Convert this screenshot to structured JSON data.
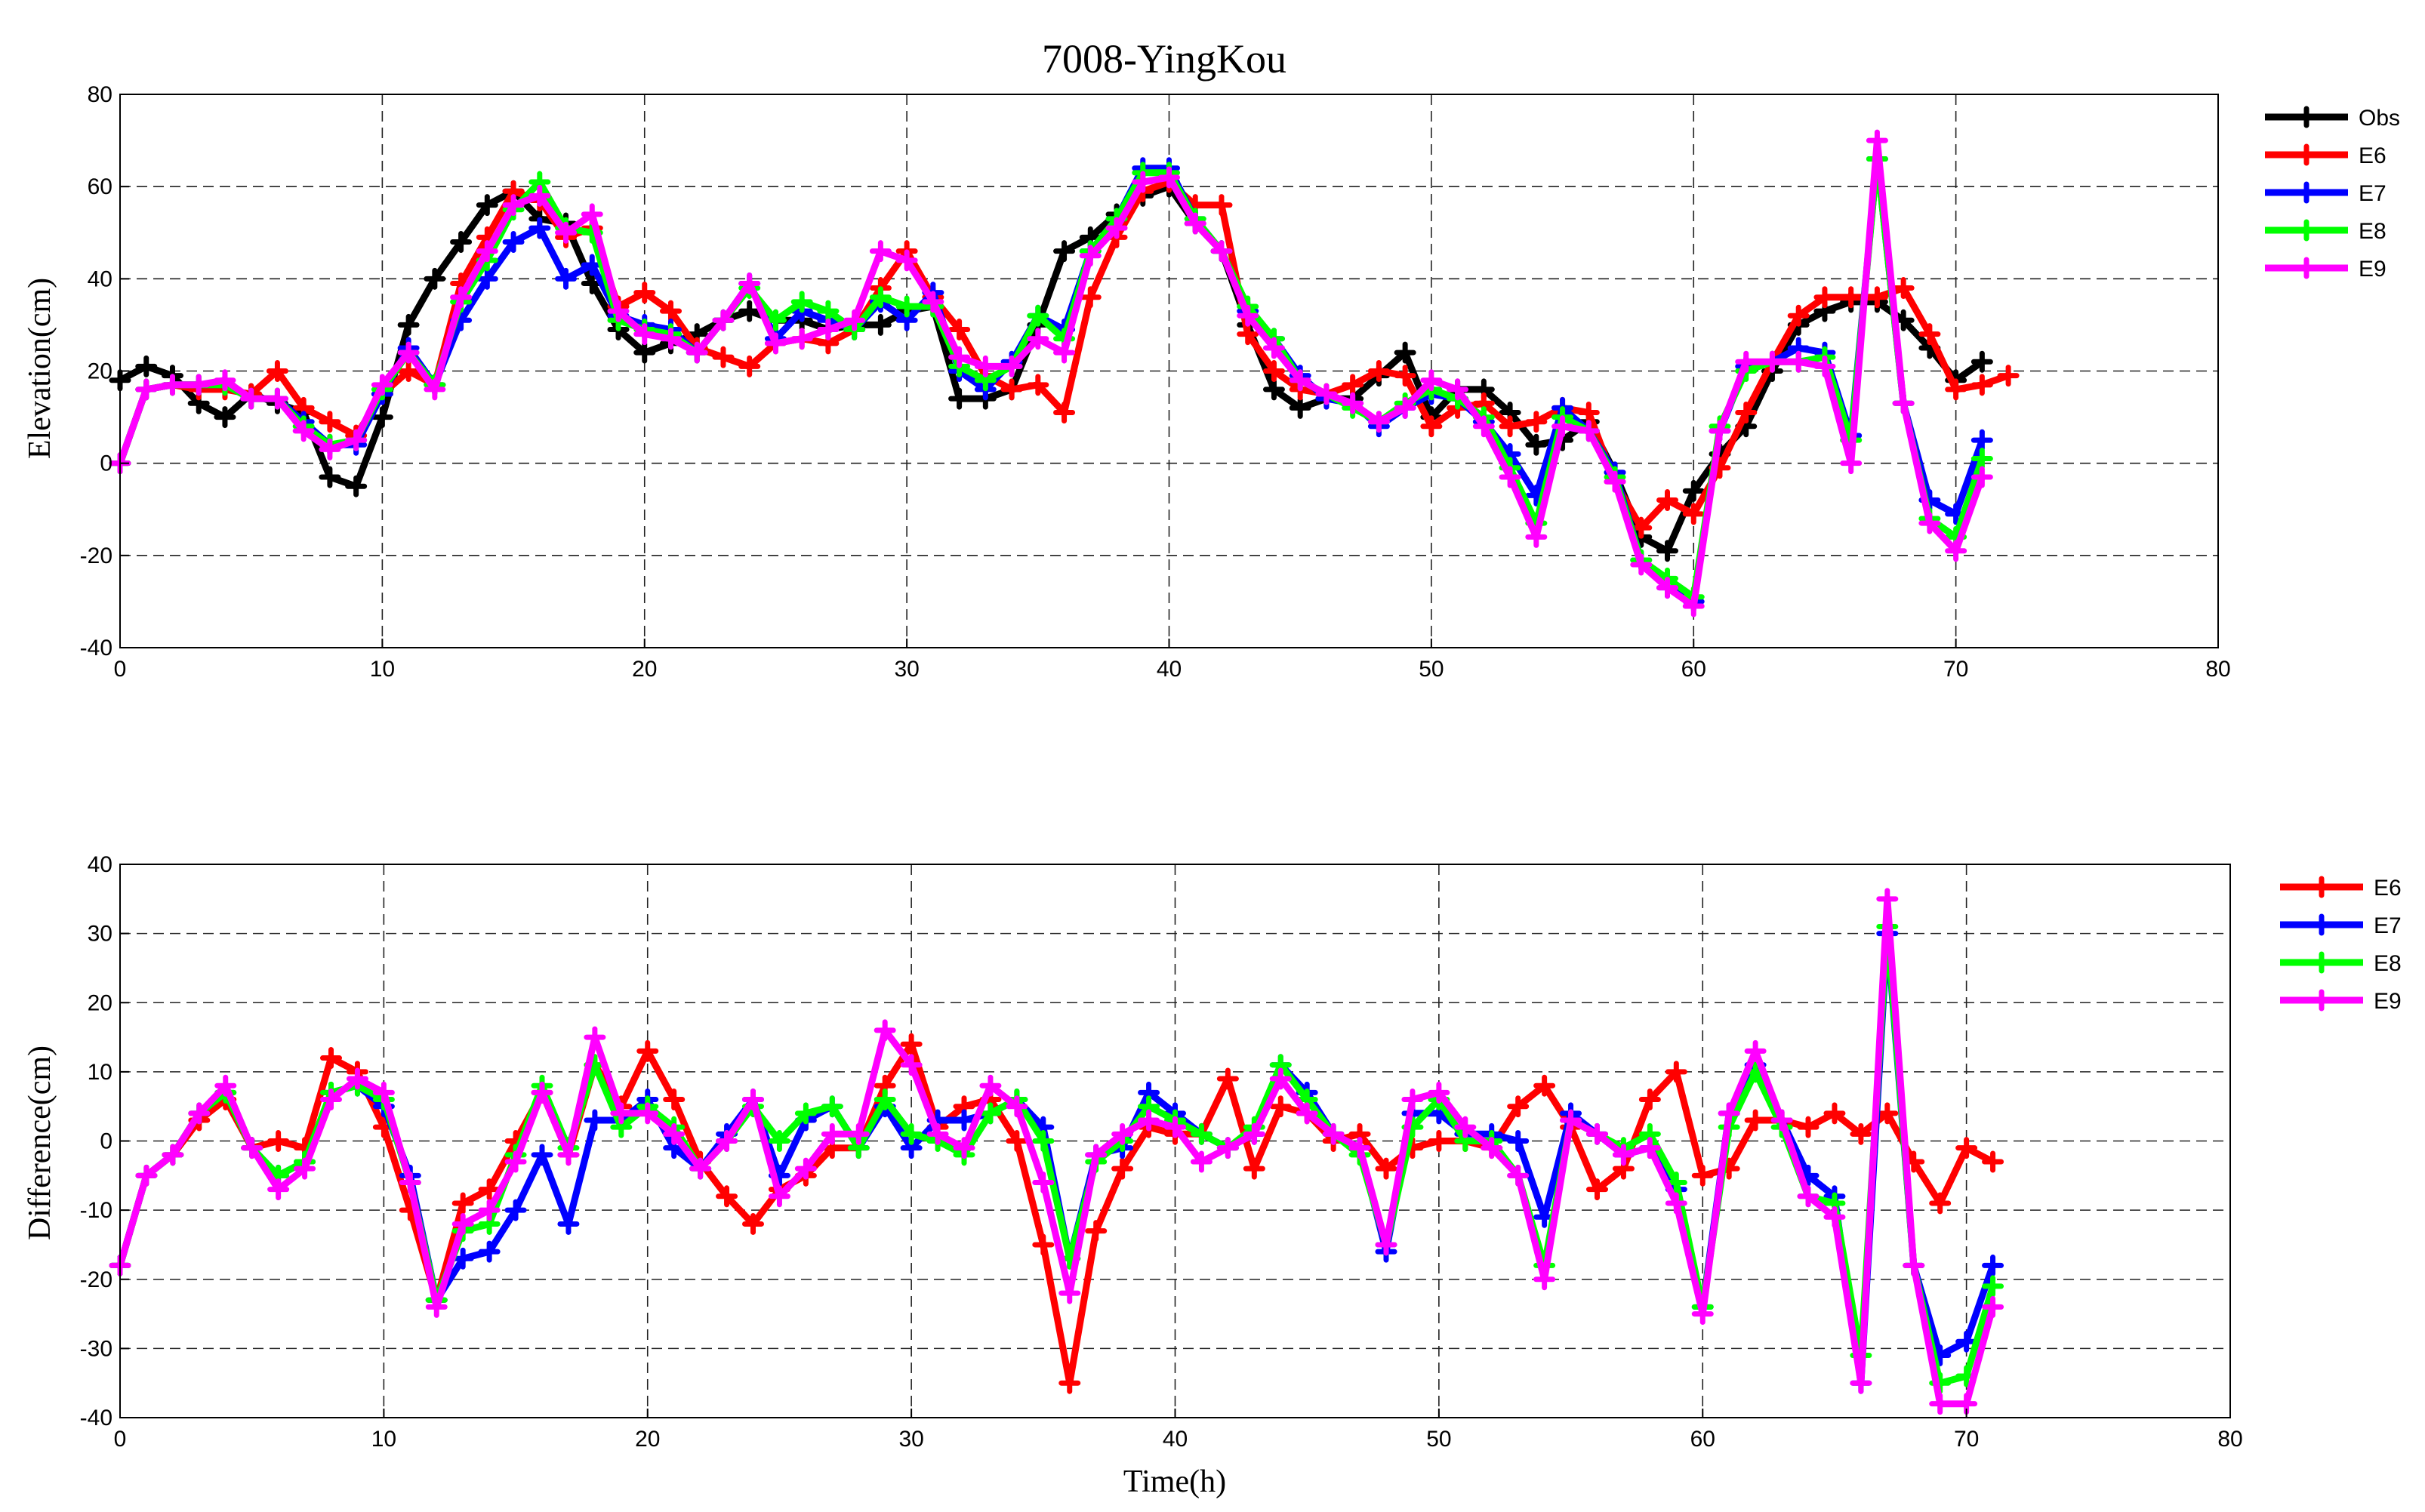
{
  "colors": {
    "Obs": "#000000",
    "E6": "#ff0000",
    "E7": "#0000ff",
    "E8": "#00ff00",
    "E9": "#ff00ff"
  },
  "chart_data": [
    {
      "type": "line",
      "title": "7008-YingKou",
      "xlabel": "",
      "ylabel": "Elevation(cm)",
      "xlim": [
        0,
        80
      ],
      "ylim": [
        -40,
        80
      ],
      "xticks": [
        0,
        10,
        20,
        30,
        40,
        50,
        60,
        70,
        80
      ],
      "yticks": [
        -40,
        -20,
        0,
        20,
        40,
        60,
        80
      ],
      "grid": true,
      "legend_position": "outside-right-top",
      "series": [
        {
          "name": "Obs",
          "color": "#000000",
          "values": [
            18,
            21,
            19,
            13,
            10,
            15,
            13,
            11,
            -3,
            -5,
            10,
            30,
            40,
            48,
            56,
            59,
            53,
            52,
            39,
            29,
            24,
            26,
            28,
            31,
            33,
            31,
            31,
            29,
            30,
            30,
            33,
            34,
            14,
            14,
            16,
            30,
            46,
            49,
            54,
            58,
            60,
            52,
            46,
            30,
            16,
            12,
            14,
            14,
            19,
            24,
            10,
            16,
            16,
            11,
            4,
            5,
            9,
            -2,
            -16,
            -19,
            -6,
            2,
            8,
            20,
            30,
            33,
            35,
            35,
            31,
            25,
            18,
            22
          ]
        },
        {
          "name": "E6",
          "color": "#ff0000",
          "values": [
            0,
            16,
            17,
            16,
            16,
            15,
            20,
            12,
            9,
            6,
            15,
            20,
            17,
            39,
            49,
            59,
            57,
            49,
            51,
            34,
            37,
            33,
            25,
            23,
            21,
            26,
            27,
            26,
            29,
            38,
            46,
            36,
            29,
            19,
            16,
            17,
            11,
            36,
            49,
            59,
            61,
            56,
            56,
            28,
            20,
            16,
            15,
            17,
            20,
            19,
            8,
            12,
            13,
            8,
            9,
            12,
            11,
            -4,
            -14,
            -8,
            -11,
            -1,
            11,
            22,
            32,
            36,
            36,
            36,
            38,
            28,
            16,
            17,
            19
          ]
        },
        {
          "name": "E7",
          "color": "#0000ff",
          "values": [
            0,
            16,
            17,
            17,
            17,
            14,
            14,
            9,
            4,
            4,
            15,
            25,
            17,
            31,
            40,
            48,
            51,
            40,
            43,
            32,
            30,
            29,
            24,
            31,
            39,
            27,
            33,
            31,
            29,
            35,
            31,
            37,
            20,
            16,
            22,
            32,
            29,
            46,
            53,
            64,
            64,
            53,
            46,
            33,
            27,
            19,
            14,
            13,
            8,
            12,
            15,
            14,
            9,
            2,
            -7,
            12,
            7,
            -2,
            -21,
            -27,
            -30,
            7,
            21,
            22,
            25,
            24,
            6,
            66,
            13,
            -8,
            -11,
            5
          ]
        },
        {
          "name": "E8",
          "color": "#00ff00",
          "values": [
            0,
            16,
            17,
            17,
            17,
            14,
            14,
            8,
            4,
            5,
            16,
            24,
            17,
            35,
            44,
            55,
            61,
            51,
            50,
            31,
            29,
            28,
            24,
            31,
            38,
            31,
            35,
            33,
            29,
            36,
            34,
            34,
            21,
            18,
            21,
            32,
            27,
            46,
            53,
            63,
            63,
            53,
            46,
            34,
            27,
            18,
            15,
            12,
            9,
            13,
            16,
            14,
            10,
            -1,
            -13,
            10,
            7,
            -3,
            -21,
            -25,
            -29,
            8,
            20,
            22,
            22,
            23,
            5,
            66,
            13,
            -12,
            -16,
            1
          ]
        },
        {
          "name": "E9",
          "color": "#ff00ff",
          "values": [
            0,
            16,
            17,
            17,
            18,
            14,
            14,
            7,
            3,
            5,
            17,
            24,
            16,
            36,
            46,
            56,
            58,
            50,
            54,
            33,
            28,
            27,
            24,
            31,
            39,
            26,
            27,
            29,
            31,
            46,
            44,
            35,
            23,
            21,
            21,
            27,
            24,
            45,
            51,
            61,
            62,
            52,
            46,
            32,
            25,
            18,
            15,
            13,
            9,
            12,
            18,
            16,
            8,
            -3,
            -16,
            8,
            7,
            -4,
            -22,
            -27,
            -31,
            7,
            22,
            22,
            22,
            21,
            0,
            70,
            13,
            -13,
            -19,
            -3
          ]
        }
      ]
    },
    {
      "type": "line",
      "title": "",
      "xlabel": "Time(h)",
      "ylabel": "Difference(cm)",
      "xlim": [
        0,
        80
      ],
      "ylim": [
        -40,
        40
      ],
      "xticks": [
        0,
        10,
        20,
        30,
        40,
        50,
        60,
        70,
        80
      ],
      "yticks": [
        -40,
        -30,
        -20,
        -10,
        0,
        10,
        20,
        30,
        40
      ],
      "grid": true,
      "legend_position": "outside-right-top",
      "series": [
        {
          "name": "E6",
          "color": "#ff0000",
          "values": [
            -18,
            -5,
            -2,
            3,
            6,
            -1,
            0,
            -1,
            12,
            10,
            2,
            -10,
            -23,
            -9,
            -7,
            0,
            7,
            -2,
            11,
            5,
            13,
            6,
            -3,
            -8,
            -12,
            -7,
            -5,
            -1,
            -1,
            8,
            14,
            2,
            5,
            6,
            0,
            -15,
            -35,
            -13,
            -4,
            2,
            1,
            1,
            9,
            -4,
            5,
            4,
            0,
            1,
            -4,
            -1,
            0,
            0,
            -1,
            5,
            8,
            2,
            -7,
            -4,
            6,
            10,
            -5,
            -4,
            3,
            3,
            2,
            4,
            1,
            4,
            -3,
            -9,
            -1,
            -3
          ]
        },
        {
          "name": "E7",
          "color": "#0000ff",
          "values": [
            -18,
            -5,
            -2,
            4,
            7,
            -1,
            -5,
            -3,
            7,
            8,
            5,
            -5,
            -23,
            -17,
            -16,
            -10,
            -2,
            -12,
            3,
            3,
            6,
            -1,
            -4,
            1,
            6,
            -5,
            3,
            5,
            -1,
            5,
            -1,
            3,
            3,
            4,
            6,
            2,
            -17,
            -2,
            -1,
            7,
            4,
            1,
            -1,
            1,
            11,
            7,
            1,
            -1,
            -16,
            4,
            4,
            1,
            1,
            0,
            -11,
            4,
            1,
            -2,
            -1,
            -7,
            -24,
            4,
            11,
            3,
            -5,
            -8,
            -35,
            30,
            -18,
            -31,
            -29,
            -18
          ]
        },
        {
          "name": "E8",
          "color": "#00ff00",
          "values": [
            -18,
            -5,
            -2,
            4,
            7,
            -1,
            -5,
            -3,
            7,
            8,
            6,
            -6,
            -23,
            -13,
            -12,
            -2,
            8,
            -1,
            11,
            2,
            5,
            2,
            -4,
            0,
            5,
            0,
            4,
            5,
            -1,
            6,
            1,
            0,
            -2,
            4,
            6,
            0,
            -17,
            -3,
            0,
            5,
            3,
            1,
            -1,
            2,
            11,
            6,
            1,
            -2,
            -15,
            2,
            6,
            0,
            0,
            -5,
            -18,
            3,
            1,
            -1,
            1,
            -6,
            -24,
            2,
            10,
            2,
            -8,
            -9,
            -31,
            31,
            -18,
            -35,
            -34,
            -21
          ]
        },
        {
          "name": "E9",
          "color": "#ff00ff",
          "values": [
            -18,
            -5,
            -2,
            4,
            8,
            -1,
            -7,
            -4,
            6,
            9,
            7,
            -6,
            -24,
            -12,
            -10,
            -3,
            7,
            -2,
            15,
            4,
            4,
            1,
            -4,
            0,
            6,
            -8,
            -4,
            1,
            1,
            16,
            11,
            1,
            -1,
            8,
            5,
            -6,
            -22,
            -2,
            1,
            3,
            2,
            -3,
            -1,
            1,
            9,
            4,
            1,
            -1,
            -15,
            6,
            7,
            2,
            -1,
            -5,
            -20,
            3,
            1,
            -2,
            -1,
            -9,
            -25,
            4,
            13,
            3,
            -8,
            -11,
            -35,
            35,
            -18,
            -38,
            -38,
            -24
          ]
        }
      ]
    }
  ]
}
